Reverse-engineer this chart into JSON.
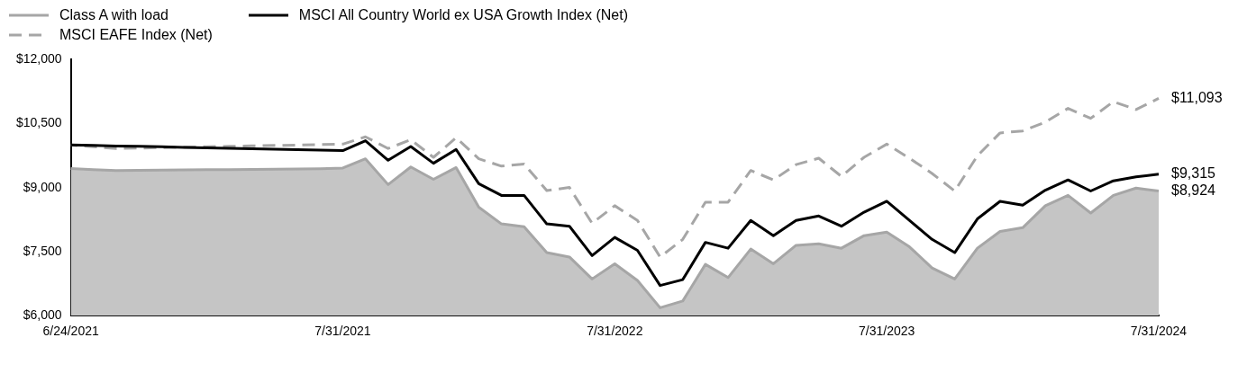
{
  "chart_data": {
    "type": "line",
    "legend": "top left",
    "categories": [
      "6/24/2021",
      null,
      null,
      null,
      null,
      null,
      null,
      null,
      null,
      null,
      null,
      null,
      "7/31/2021",
      null,
      null,
      null,
      null,
      null,
      null,
      null,
      null,
      null,
      null,
      null,
      "7/31/2022",
      null,
      null,
      null,
      null,
      null,
      null,
      null,
      null,
      null,
      null,
      null,
      "7/31/2023",
      null,
      null,
      null,
      null,
      null,
      null,
      null,
      null,
      null,
      null,
      null,
      "7/31/2024"
    ],
    "ylim": [
      6000,
      12000
    ],
    "yticks": [
      {
        "value": 6000,
        "label": "$6,000"
      },
      {
        "value": 7500,
        "label": "$7,500"
      },
      {
        "value": 9000,
        "label": "$9,000"
      },
      {
        "value": 10500,
        "label": "$10,500"
      },
      {
        "value": 12000,
        "label": "$12,000"
      }
    ],
    "grid": false,
    "series": [
      {
        "name": "Class A with load",
        "type": "area",
        "color": "#a6a6a6",
        "values": [
          9450,
          9425,
          9400,
          9405,
          9410,
          9415,
          9420,
          9425,
          9430,
          9435,
          9440,
          9445,
          9460,
          9677,
          9072,
          9485,
          9196,
          9471,
          8542,
          8151,
          8083,
          7478,
          7375,
          6860,
          7217,
          6825,
          6186,
          6344,
          7203,
          6893,
          7561,
          7217,
          7650,
          7685,
          7581,
          7876,
          7959,
          7615,
          7120,
          6860,
          7581,
          7973,
          8062,
          8577,
          8819,
          8406,
          8819,
          8990,
          8924
        ],
        "value_labels": [
          null,
          null,
          null,
          null,
          null,
          null,
          null,
          null,
          null,
          null,
          null,
          null,
          null,
          null,
          null,
          null,
          null,
          null,
          null,
          null,
          null,
          null,
          null,
          null,
          null,
          null,
          null,
          null,
          null,
          null,
          null,
          null,
          null,
          null,
          null,
          null,
          null,
          null,
          null,
          null,
          null,
          null,
          null,
          null,
          null,
          null,
          null,
          null,
          "$8,924"
        ]
      },
      {
        "name": "MSCI All Country World ex USA Growth Index (Net)",
        "type": "line",
        "color": "#000000",
        "values": [
          10000,
          9989,
          9978,
          9968,
          9957,
          9946,
          9935,
          9924,
          9913,
          9903,
          9892,
          9881,
          9870,
          10100,
          9643,
          9965,
          9573,
          9897,
          9093,
          8819,
          8819,
          8151,
          8097,
          7409,
          7835,
          7532,
          6707,
          6845,
          7718,
          7581,
          8233,
          7876,
          8233,
          8336,
          8097,
          8426,
          8681,
          8233,
          7788,
          7478,
          8268,
          8681,
          8592,
          8942,
          9182,
          8922,
          9161,
          9252,
          9315
        ],
        "value_labels": [
          null,
          null,
          null,
          null,
          null,
          null,
          null,
          null,
          null,
          null,
          null,
          null,
          null,
          null,
          null,
          null,
          null,
          null,
          null,
          null,
          null,
          null,
          null,
          null,
          null,
          null,
          null,
          null,
          null,
          null,
          null,
          null,
          null,
          null,
          null,
          null,
          null,
          null,
          null,
          null,
          null,
          null,
          null,
          null,
          null,
          null,
          null,
          null,
          "$9,315"
        ]
      },
      {
        "name": "MSCI EAFE Index (Net)",
        "type": "line",
        "line_style": "dashed",
        "color": "#a6a6a6",
        "values": [
          10000,
          9959,
          9918,
          9928,
          9939,
          9949,
          9959,
          9969,
          9980,
          9990,
          10000,
          10011,
          10021,
          10192,
          9918,
          10124,
          9712,
          10171,
          9677,
          9505,
          9553,
          8934,
          9004,
          8165,
          8577,
          8233,
          7375,
          7788,
          8660,
          8660,
          9402,
          9182,
          9540,
          9691,
          9264,
          9712,
          10021,
          9691,
          9334,
          8922,
          9746,
          10283,
          10330,
          10536,
          10859,
          10625,
          11017,
          10831,
          11093
        ],
        "value_labels": [
          null,
          null,
          null,
          null,
          null,
          null,
          null,
          null,
          null,
          null,
          null,
          null,
          null,
          null,
          null,
          null,
          null,
          null,
          null,
          null,
          null,
          null,
          null,
          null,
          null,
          null,
          null,
          null,
          null,
          null,
          null,
          null,
          null,
          null,
          null,
          null,
          null,
          null,
          null,
          null,
          null,
          null,
          null,
          null,
          null,
          null,
          null,
          null,
          "$11,093"
        ]
      }
    ]
  }
}
